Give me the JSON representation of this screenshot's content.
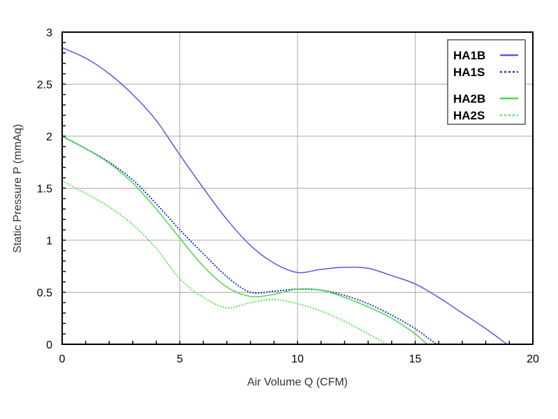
{
  "chart_data": {
    "type": "line",
    "title": "",
    "xlabel": "Air Volume Q (CFM)",
    "ylabel": "Static Pressure P (mmAq)",
    "xlim": [
      0,
      20
    ],
    "ylim": [
      0,
      3
    ],
    "xticks": [
      "0",
      "5",
      "10",
      "15",
      "20"
    ],
    "yticks": [
      "0",
      "0.5",
      "1",
      "1.5",
      "2",
      "2.5",
      "3"
    ],
    "xtick_values": [
      0,
      5,
      10,
      15,
      20
    ],
    "ytick_values": [
      0,
      0.5,
      1,
      1.5,
      2,
      2.5,
      3
    ],
    "grid": true,
    "legend_position": "top-right",
    "series": [
      {
        "name": "HA1B",
        "color": "#5555ee",
        "dash": "solid",
        "x": [
          0,
          1,
          2,
          3,
          4,
          5,
          6,
          7,
          8,
          9,
          10,
          11,
          12,
          13,
          14,
          15,
          16,
          17,
          18,
          18.9
        ],
        "y": [
          2.85,
          2.75,
          2.6,
          2.4,
          2.15,
          1.82,
          1.5,
          1.2,
          0.95,
          0.78,
          0.69,
          0.72,
          0.74,
          0.73,
          0.66,
          0.58,
          0.45,
          0.3,
          0.15,
          0
        ]
      },
      {
        "name": "HA1S",
        "color": "#2233cc",
        "dash": "dotted",
        "x": [
          0,
          1,
          2,
          3,
          4,
          5,
          6,
          7,
          8,
          9,
          10,
          11,
          12,
          13,
          14,
          15,
          15.9
        ],
        "y": [
          2.0,
          1.88,
          1.75,
          1.58,
          1.35,
          1.1,
          0.87,
          0.65,
          0.5,
          0.51,
          0.53,
          0.52,
          0.47,
          0.39,
          0.28,
          0.15,
          0
        ]
      },
      {
        "name": "HA2B",
        "color": "#44dd44",
        "dash": "solid",
        "x": [
          0,
          1,
          2,
          3,
          4,
          5,
          6,
          7,
          8,
          9,
          10,
          11,
          12,
          13,
          14,
          15,
          15.5
        ],
        "y": [
          2.0,
          1.88,
          1.74,
          1.55,
          1.3,
          1.02,
          0.75,
          0.55,
          0.46,
          0.48,
          0.53,
          0.52,
          0.45,
          0.36,
          0.25,
          0.1,
          0
        ]
      },
      {
        "name": "HA2S",
        "color": "#55ee55",
        "dash": "dotted",
        "x": [
          0,
          1,
          2,
          3,
          4,
          5,
          6,
          7,
          8,
          9,
          10,
          11,
          12,
          13,
          13.8
        ],
        "y": [
          1.57,
          1.45,
          1.32,
          1.15,
          0.92,
          0.63,
          0.45,
          0.35,
          0.4,
          0.43,
          0.39,
          0.32,
          0.22,
          0.1,
          0
        ]
      }
    ]
  }
}
